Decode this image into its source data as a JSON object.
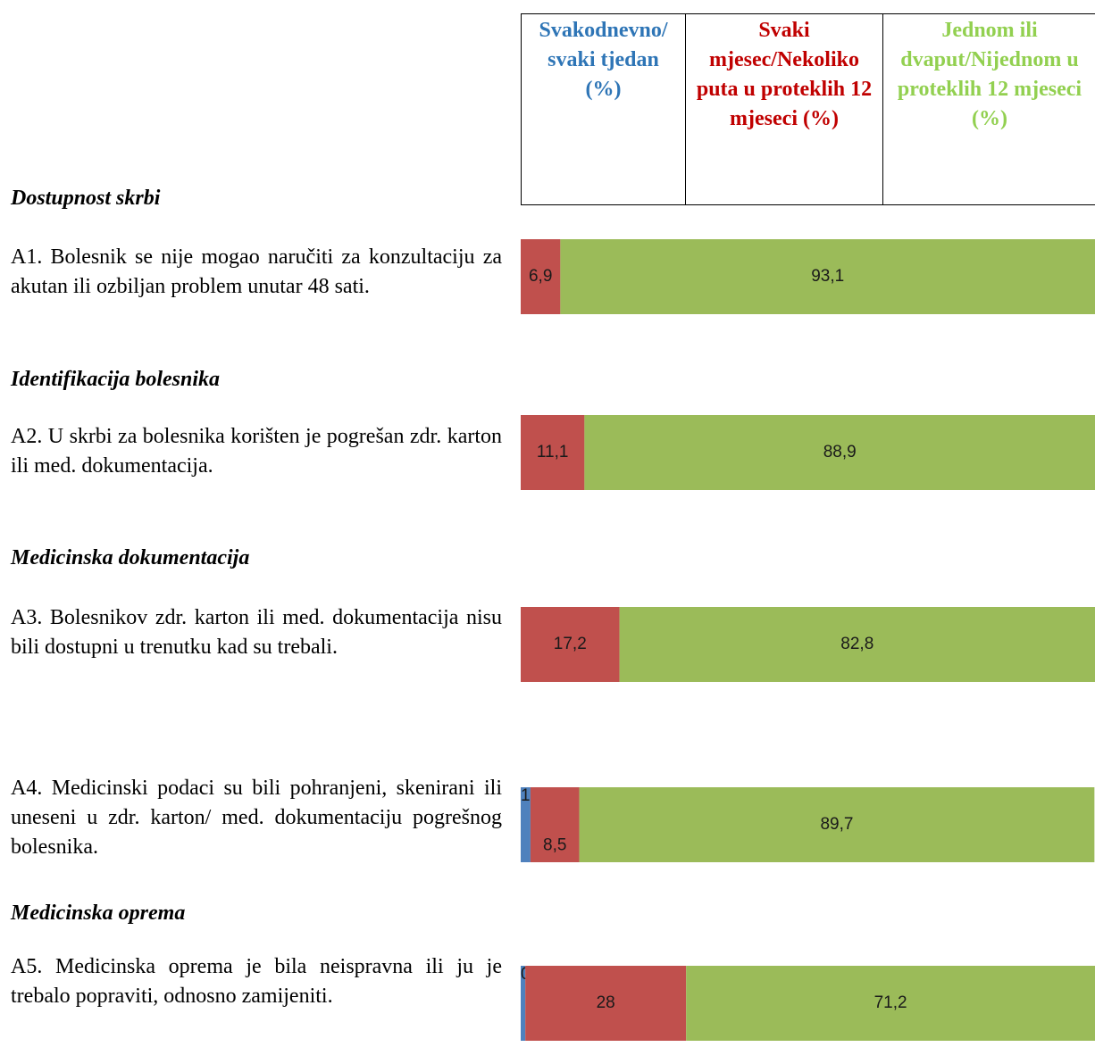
{
  "chart_data": {
    "type": "bar",
    "orientation": "horizontal",
    "stacked": true,
    "xlim": [
      0,
      100
    ],
    "categories": [
      "A1. Bolesnik se nije mogao naručiti za konzultaciju za akutan ili ozbiljan problem unutar 48 sati.",
      "A2. U skrbi za bolesnika korišten je pogrešan zdr. karton ili med. dokumentacija.",
      "A3. Bolesnikov zdr. karton ili med. dokumentacija nisu bili dostupni u trenutku kad su trebali.",
      "A4. Medicinski podaci su bili pohranjeni, skenirani ili uneseni u zdr. karton/ med. dokumentaciju pogrešnog bolesnika.",
      "A5. Medicinska oprema je bila neispravna ili ju je trebalo popraviti, odnosno zamijeniti."
    ],
    "category_headings": [
      "Dostupnost skrbi",
      "Identifikacija bolesnika",
      "Medicinska dokumentacija",
      null,
      "Medicinska oprema"
    ],
    "series": [
      {
        "name": "Svakodnevno/ svaki tjedan (%)",
        "color": "#4f81bd",
        "text_color": "#2e75b6",
        "values": [
          null,
          null,
          null,
          1.7,
          0.8
        ],
        "value_labels": [
          null,
          null,
          null,
          "1,7",
          "0,8"
        ]
      },
      {
        "name": "Svaki mjesec/Nekoliko puta u proteklih 12 mjeseci (%)",
        "color": "#c0504d",
        "text_color": "#c00000",
        "values": [
          6.9,
          11.1,
          17.2,
          8.5,
          28
        ],
        "value_labels": [
          "6,9",
          "11,1",
          "17,2",
          "8,5",
          "28"
        ]
      },
      {
        "name": "Jednom ili dvaput/Nijednom u proteklih 12 mjeseci (%)",
        "color": "#9bbb59",
        "text_color": "#92d050",
        "values": [
          93.1,
          88.9,
          82.8,
          89.7,
          71.2
        ],
        "value_labels": [
          "93,1",
          "88,9",
          "82,8",
          "89,7",
          "71,2"
        ]
      }
    ]
  }
}
